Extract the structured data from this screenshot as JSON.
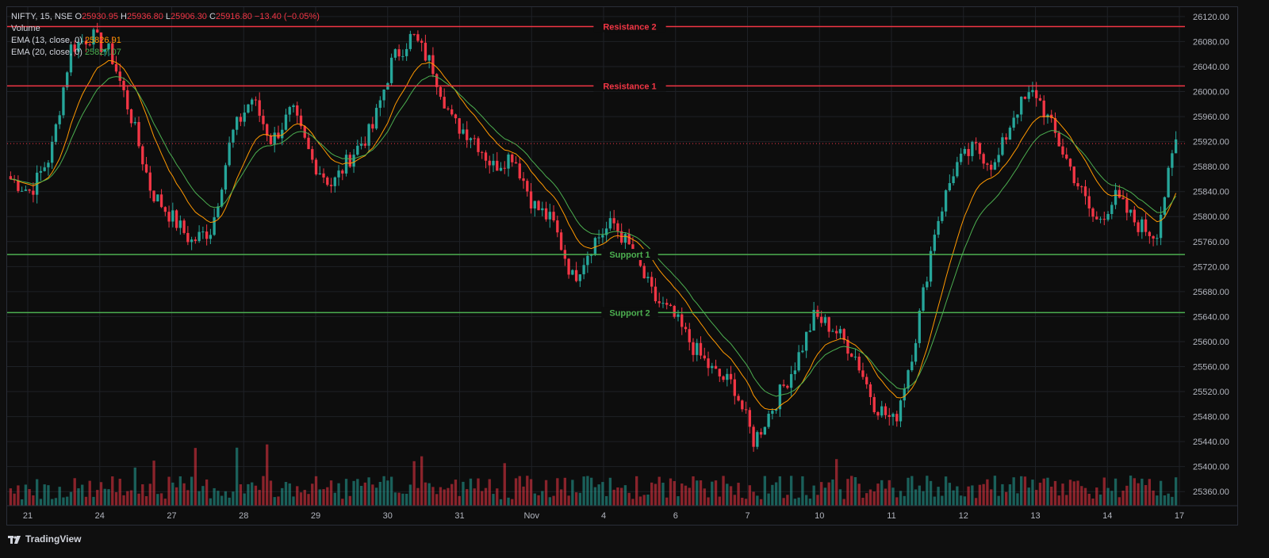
{
  "header": {
    "symbol": "NIFTY, 15, NSE",
    "open_label": "O",
    "open": "25930.95",
    "high_label": "H",
    "high": "25936.80",
    "low_label": "L",
    "low": "25906.30",
    "close_label": "C",
    "close": "25916.80",
    "change": "−13.40 (−0.05%)",
    "volume_label": "Volume",
    "ema13_label": "EMA (13, close, 0)",
    "ema13_value": "25826.91",
    "ema20_label": "EMA (20, close, 0)",
    "ema20_value": "25827.07"
  },
  "footer": {
    "brand": "TradingView"
  },
  "colors": {
    "up": "#26a69a",
    "down": "#f23645",
    "ema13": "#ff9800",
    "ema20": "#4caf50",
    "resistance": "#f23645",
    "support": "#4caf50",
    "background": "#0d0d0d",
    "grid": "#1e2126"
  },
  "chart_data": {
    "type": "candlestick",
    "title": "NIFTY, 15, NSE",
    "ylim": [
      25340,
      26130
    ],
    "y_ticks": [
      "26120.00",
      "26080.00",
      "26040.00",
      "26000.00",
      "25960.00",
      "25920.00",
      "25880.00",
      "25840.00",
      "25800.00",
      "25760.00",
      "25720.00",
      "25680.00",
      "25640.00",
      "25600.00",
      "25560.00",
      "25520.00",
      "25480.00",
      "25440.00",
      "25400.00",
      "25360.00"
    ],
    "x_ticks": [
      "21",
      "24",
      "27",
      "28",
      "29",
      "30",
      "31",
      "Nov",
      "4",
      "6",
      "7",
      "10",
      "11",
      "12",
      "13",
      "14",
      "17"
    ],
    "grid": true,
    "last_price": 25916.8,
    "last_price_label": "25916.80",
    "levels": [
      {
        "name": "Resistance 2",
        "value": 26104.0,
        "label": "26104.00",
        "kind": "resistance"
      },
      {
        "name": "Resistance 1",
        "value": 26009.0,
        "label": "26009.00",
        "kind": "resistance"
      },
      {
        "name": "Support 1",
        "value": 25739.34,
        "label": "25739.34",
        "kind": "support"
      },
      {
        "name": "Support 2",
        "value": 25646.47,
        "label": "25646.47",
        "kind": "support"
      }
    ],
    "ema_markers": [
      {
        "name": "EMA 20",
        "value": 25827.07,
        "label": "25827.07"
      },
      {
        "name": "EMA 13",
        "value": 25826.91,
        "label": "25826.91"
      }
    ],
    "price_path": [
      [
        "21",
        25860
      ],
      [
        "21",
        25840
      ],
      [
        "21",
        25900
      ],
      [
        "21",
        26070
      ],
      [
        "21",
        26090
      ],
      [
        "24",
        26060
      ],
      [
        "24",
        25960
      ],
      [
        "24",
        25840
      ],
      [
        "24",
        25800
      ],
      [
        "24",
        25760
      ],
      [
        "27",
        25780
      ],
      [
        "27",
        25930
      ],
      [
        "27",
        25990
      ],
      [
        "27",
        25920
      ],
      [
        "28",
        25970
      ],
      [
        "28",
        25890
      ],
      [
        "28",
        25850
      ],
      [
        "28",
        25900
      ],
      [
        "29",
        25940
      ],
      [
        "29",
        26050
      ],
      [
        "29",
        26090
      ],
      [
        "30",
        26040
      ],
      [
        "30",
        25950
      ],
      [
        "30",
        25930
      ],
      [
        "31",
        25880
      ],
      [
        "31",
        25900
      ],
      [
        "31",
        25820
      ],
      [
        "31",
        25790
      ],
      [
        "Nov",
        25700
      ],
      [
        "Nov",
        25760
      ],
      [
        "4",
        25790
      ],
      [
        "4",
        25740
      ],
      [
        "4",
        25670
      ],
      [
        "6",
        25640
      ],
      [
        "6",
        25590
      ],
      [
        "6",
        25550
      ],
      [
        "7",
        25530
      ],
      [
        "7",
        25440
      ],
      [
        "7",
        25500
      ],
      [
        "10",
        25560
      ],
      [
        "10",
        25640
      ],
      [
        "10",
        25620
      ],
      [
        "11",
        25580
      ],
      [
        "11",
        25500
      ],
      [
        "11",
        25470
      ],
      [
        "12",
        25600
      ],
      [
        "12",
        25780
      ],
      [
        "12",
        25880
      ],
      [
        "13",
        25910
      ],
      [
        "13",
        25880
      ],
      [
        "13",
        25970
      ],
      [
        "13",
        26000
      ],
      [
        "14",
        25930
      ],
      [
        "14",
        25860
      ],
      [
        "14",
        25790
      ],
      [
        "14",
        25830
      ],
      [
        "14",
        25790
      ],
      [
        "17",
        25770
      ],
      [
        "17",
        25920
      ]
    ]
  }
}
